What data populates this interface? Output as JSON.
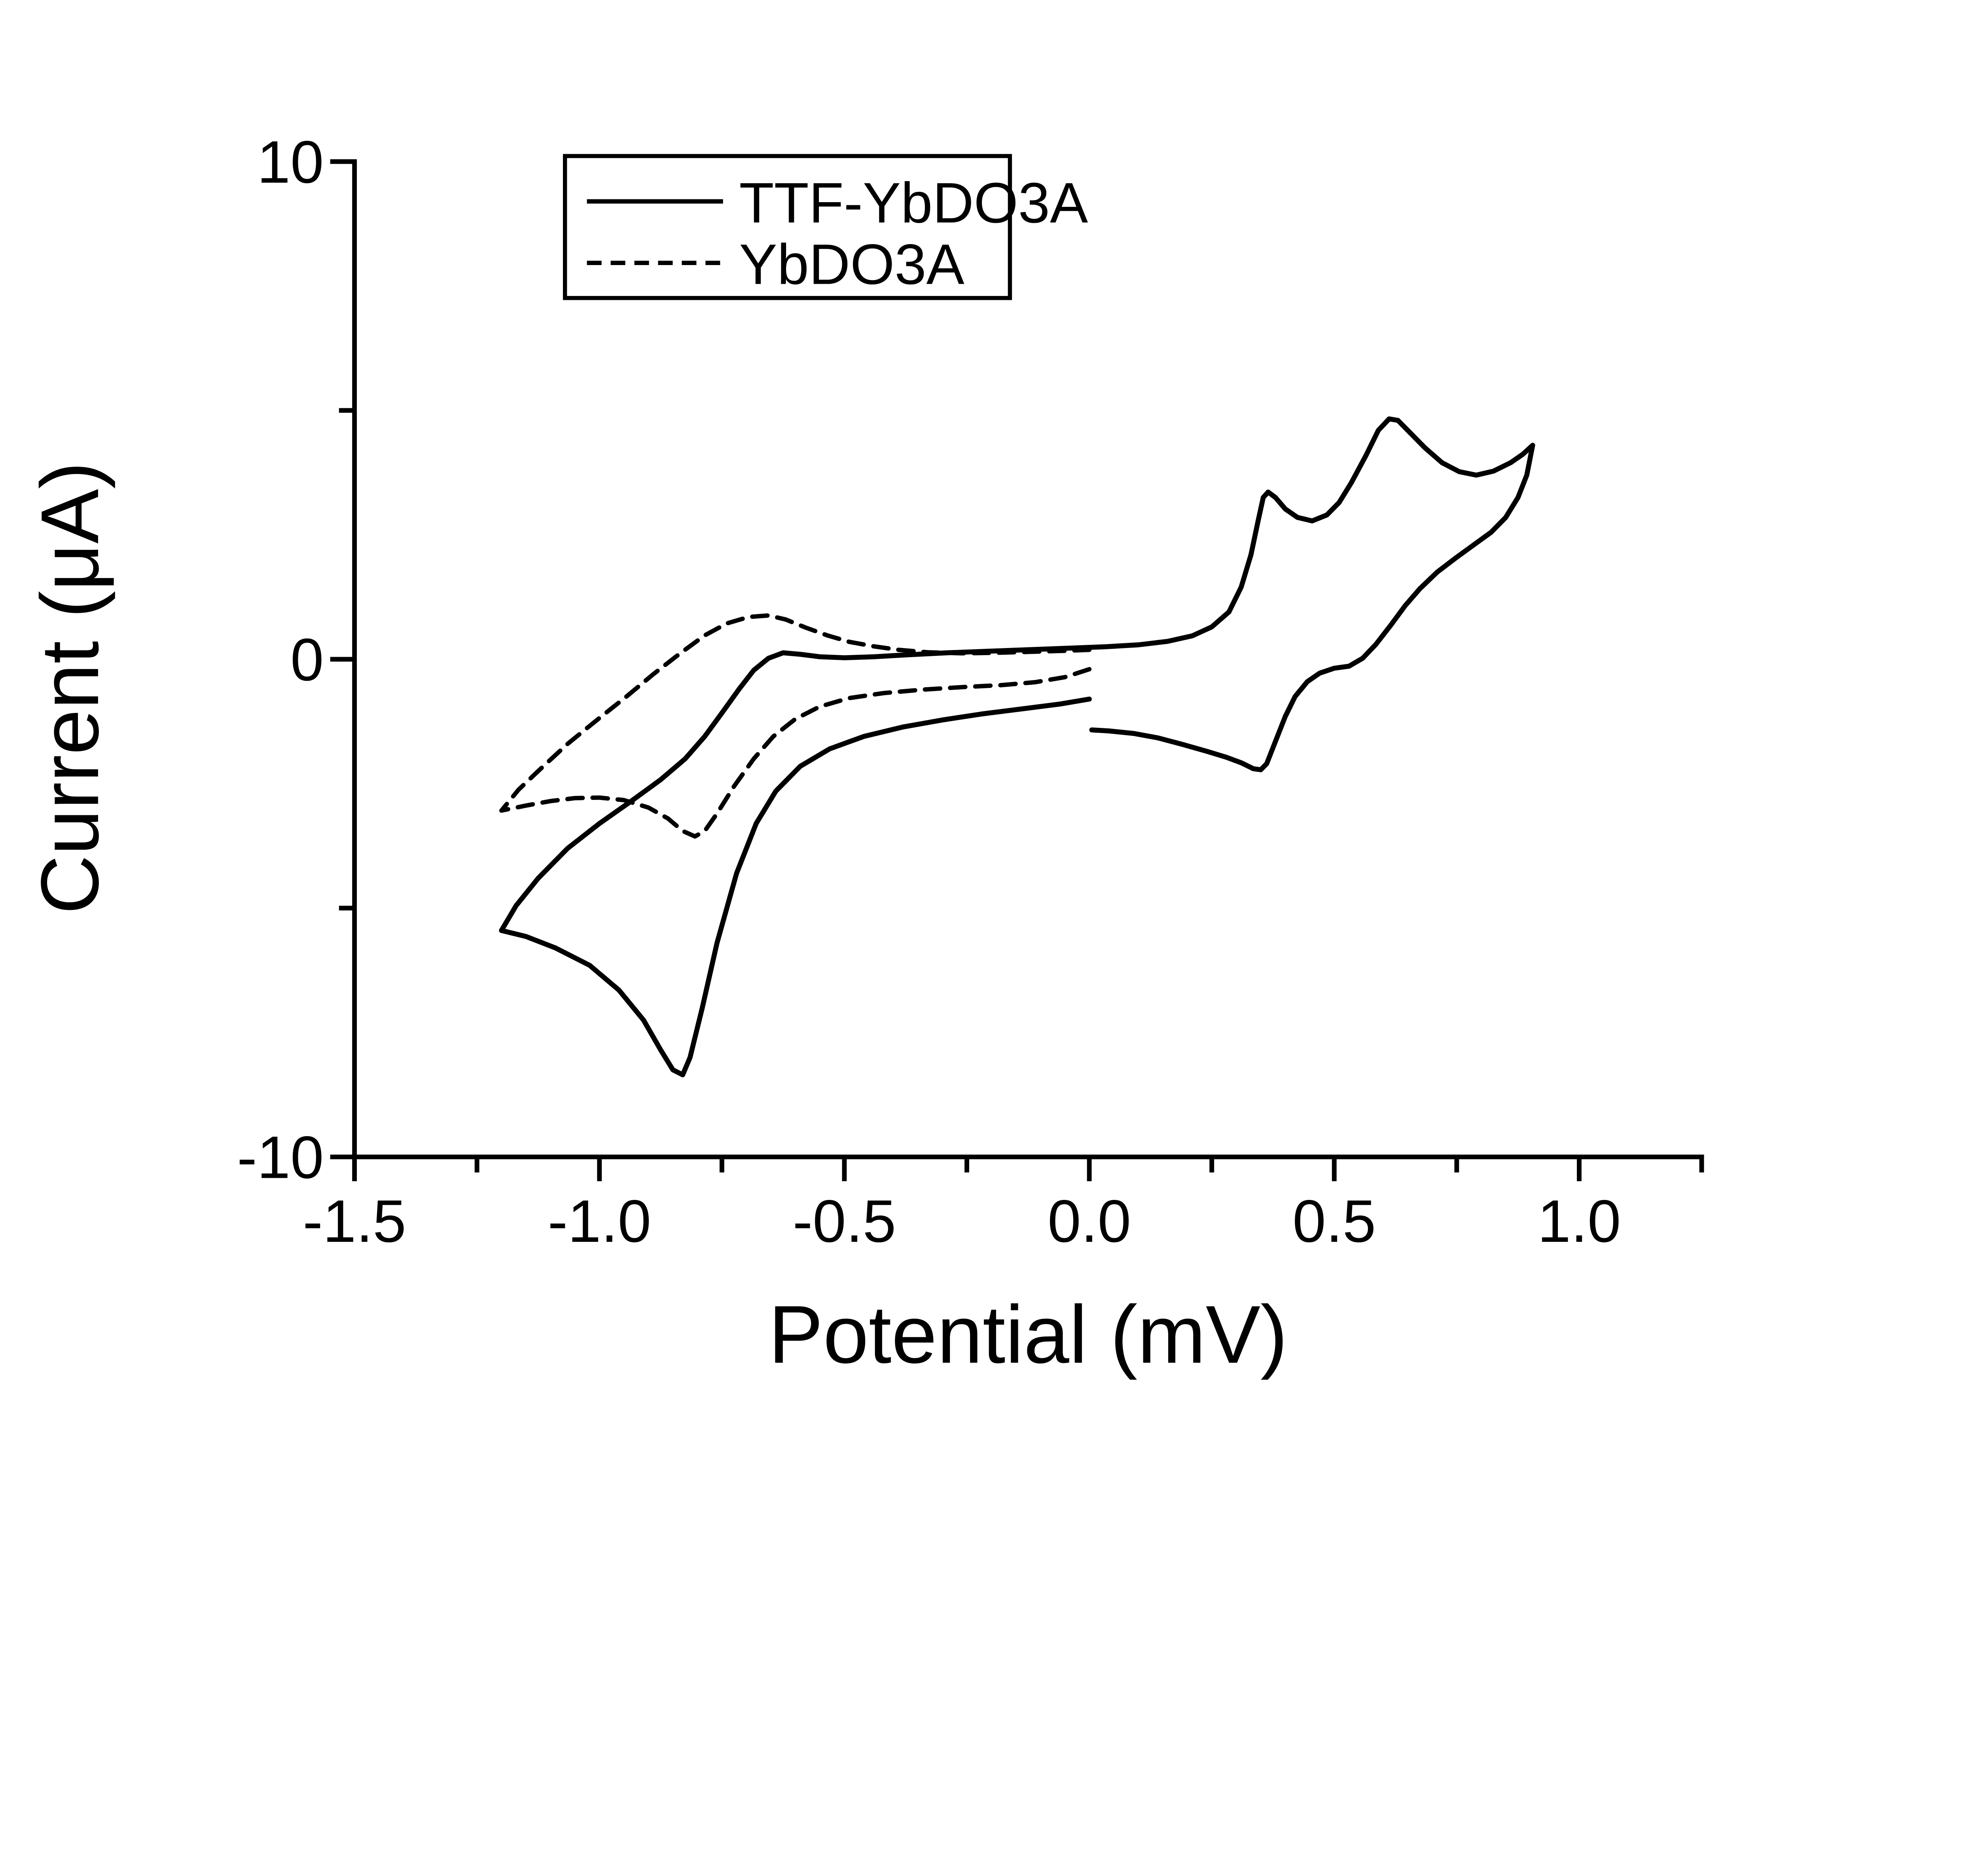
{
  "figure": {
    "background_color": "#ffffff",
    "ink_color": "#000000",
    "title": ""
  },
  "chart_data": {
    "type": "line",
    "title": "",
    "xlabel": "Potential (mV)",
    "ylabel": "Current (μA)",
    "xlim": [
      -1.5,
      1.25
    ],
    "ylim": [
      -10,
      10
    ],
    "grid": false,
    "legend_position": "top-left-inside",
    "x_major_ticks": [
      -1.5,
      -1.0,
      -0.5,
      0.0,
      0.5,
      1.0
    ],
    "x_major_tick_labels": [
      "-1.5",
      "-1.0",
      "-0.5",
      "0.0",
      "0.5",
      "1.0"
    ],
    "x_minor_ticks": [
      -1.25,
      -0.75,
      -0.25,
      0.25,
      0.75,
      1.25
    ],
    "y_major_ticks": [
      10,
      0,
      -10
    ],
    "y_major_tick_labels": [
      "10",
      "0",
      "-10"
    ],
    "y_minor_ticks": [
      5,
      -5
    ],
    "series": [
      {
        "name": "TTF-YbDO3A",
        "line_style": "solid",
        "description": "cyclic voltammogram, full sweep 0 V → -1.2 V → 0 V → +0.9 V → 0 V",
        "points": [
          [
            0.0,
            -0.8
          ],
          [
            -0.06,
            -0.9
          ],
          [
            -0.14,
            -1.0
          ],
          [
            -0.22,
            -1.1
          ],
          [
            -0.3,
            -1.22
          ],
          [
            -0.38,
            -1.36
          ],
          [
            -0.46,
            -1.55
          ],
          [
            -0.53,
            -1.8
          ],
          [
            -0.59,
            -2.15
          ],
          [
            -0.64,
            -2.65
          ],
          [
            -0.68,
            -3.3
          ],
          [
            -0.72,
            -4.3
          ],
          [
            -0.76,
            -5.7
          ],
          [
            -0.79,
            -7.0
          ],
          [
            -0.815,
            -8.0
          ],
          [
            -0.83,
            -8.35
          ],
          [
            -0.85,
            -8.25
          ],
          [
            -0.875,
            -7.85
          ],
          [
            -0.91,
            -7.25
          ],
          [
            -0.96,
            -6.65
          ],
          [
            -1.02,
            -6.15
          ],
          [
            -1.09,
            -5.8
          ],
          [
            -1.15,
            -5.57
          ],
          [
            -1.2,
            -5.45
          ],
          [
            -1.17,
            -4.95
          ],
          [
            -1.125,
            -4.4
          ],
          [
            -1.065,
            -3.8
          ],
          [
            -1.0,
            -3.3
          ],
          [
            -0.935,
            -2.85
          ],
          [
            -0.875,
            -2.42
          ],
          [
            -0.825,
            -2.0
          ],
          [
            -0.785,
            -1.55
          ],
          [
            -0.75,
            -1.08
          ],
          [
            -0.715,
            -0.6
          ],
          [
            -0.685,
            -0.22
          ],
          [
            -0.655,
            0.02
          ],
          [
            -0.625,
            0.13
          ],
          [
            -0.59,
            0.1
          ],
          [
            -0.55,
            0.05
          ],
          [
            -0.5,
            0.03
          ],
          [
            -0.44,
            0.05
          ],
          [
            -0.37,
            0.09
          ],
          [
            -0.29,
            0.13
          ],
          [
            -0.21,
            0.16
          ],
          [
            -0.13,
            0.19
          ],
          [
            -0.05,
            0.22
          ],
          [
            0.03,
            0.25
          ],
          [
            0.1,
            0.29
          ],
          [
            0.16,
            0.36
          ],
          [
            0.21,
            0.47
          ],
          [
            0.25,
            0.65
          ],
          [
            0.285,
            0.95
          ],
          [
            0.31,
            1.45
          ],
          [
            0.33,
            2.1
          ],
          [
            0.345,
            2.8
          ],
          [
            0.355,
            3.25
          ],
          [
            0.365,
            3.36
          ],
          [
            0.38,
            3.25
          ],
          [
            0.4,
            3.02
          ],
          [
            0.425,
            2.85
          ],
          [
            0.455,
            2.78
          ],
          [
            0.485,
            2.9
          ],
          [
            0.51,
            3.15
          ],
          [
            0.535,
            3.55
          ],
          [
            0.565,
            4.1
          ],
          [
            0.59,
            4.6
          ],
          [
            0.612,
            4.83
          ],
          [
            0.63,
            4.8
          ],
          [
            0.655,
            4.55
          ],
          [
            0.685,
            4.25
          ],
          [
            0.72,
            3.95
          ],
          [
            0.755,
            3.77
          ],
          [
            0.79,
            3.7
          ],
          [
            0.825,
            3.78
          ],
          [
            0.86,
            3.95
          ],
          [
            0.885,
            4.12
          ],
          [
            0.905,
            4.3
          ],
          [
            0.893,
            3.7
          ],
          [
            0.875,
            3.25
          ],
          [
            0.85,
            2.85
          ],
          [
            0.82,
            2.55
          ],
          [
            0.785,
            2.3
          ],
          [
            0.75,
            2.05
          ],
          [
            0.71,
            1.75
          ],
          [
            0.675,
            1.42
          ],
          [
            0.645,
            1.08
          ],
          [
            0.615,
            0.68
          ],
          [
            0.585,
            0.3
          ],
          [
            0.558,
            0.02
          ],
          [
            0.53,
            -0.14
          ],
          [
            0.5,
            -0.18
          ],
          [
            0.47,
            -0.28
          ],
          [
            0.445,
            -0.45
          ],
          [
            0.42,
            -0.75
          ],
          [
            0.4,
            -1.15
          ],
          [
            0.38,
            -1.65
          ],
          [
            0.362,
            -2.1
          ],
          [
            0.35,
            -2.22
          ],
          [
            0.335,
            -2.2
          ],
          [
            0.31,
            -2.08
          ],
          [
            0.28,
            -1.97
          ],
          [
            0.24,
            -1.85
          ],
          [
            0.19,
            -1.71
          ],
          [
            0.14,
            -1.58
          ],
          [
            0.09,
            -1.49
          ],
          [
            0.04,
            -1.44
          ],
          [
            0.005,
            -1.42
          ]
        ]
      },
      {
        "name": "YbDO3A",
        "line_style": "dashed",
        "description": "cyclic voltammogram, sweep 0 V → -1.2 V → 0 V",
        "points": [
          [
            0.0,
            -0.2
          ],
          [
            -0.05,
            -0.36
          ],
          [
            -0.11,
            -0.46
          ],
          [
            -0.18,
            -0.52
          ],
          [
            -0.26,
            -0.56
          ],
          [
            -0.34,
            -0.61
          ],
          [
            -0.42,
            -0.68
          ],
          [
            -0.49,
            -0.78
          ],
          [
            -0.55,
            -0.95
          ],
          [
            -0.6,
            -1.2
          ],
          [
            -0.645,
            -1.55
          ],
          [
            -0.685,
            -2.0
          ],
          [
            -0.725,
            -2.55
          ],
          [
            -0.76,
            -3.1
          ],
          [
            -0.785,
            -3.45
          ],
          [
            -0.805,
            -3.56
          ],
          [
            -0.83,
            -3.45
          ],
          [
            -0.86,
            -3.2
          ],
          [
            -0.9,
            -2.98
          ],
          [
            -0.95,
            -2.83
          ],
          [
            -1.0,
            -2.78
          ],
          [
            -1.05,
            -2.79
          ],
          [
            -1.1,
            -2.85
          ],
          [
            -1.15,
            -2.94
          ],
          [
            -1.2,
            -3.04
          ],
          [
            -1.165,
            -2.62
          ],
          [
            -1.12,
            -2.2
          ],
          [
            -1.065,
            -1.7
          ],
          [
            -1.005,
            -1.22
          ],
          [
            -0.945,
            -0.75
          ],
          [
            -0.89,
            -0.3
          ],
          [
            -0.835,
            0.12
          ],
          [
            -0.785,
            0.48
          ],
          [
            -0.74,
            0.72
          ],
          [
            -0.695,
            0.85
          ],
          [
            -0.655,
            0.88
          ],
          [
            -0.62,
            0.8
          ],
          [
            -0.58,
            0.64
          ],
          [
            -0.535,
            0.48
          ],
          [
            -0.49,
            0.35
          ],
          [
            -0.44,
            0.26
          ],
          [
            -0.39,
            0.19
          ],
          [
            -0.33,
            0.14
          ],
          [
            -0.26,
            0.12
          ],
          [
            -0.19,
            0.13
          ],
          [
            -0.12,
            0.15
          ],
          [
            -0.05,
            0.17
          ],
          [
            0.0,
            0.19
          ]
        ]
      }
    ]
  },
  "legend": {
    "items": [
      {
        "label": "TTF-YbDO3A",
        "line_style": "solid"
      },
      {
        "label": "YbDO3A",
        "line_style": "dashed"
      }
    ]
  }
}
